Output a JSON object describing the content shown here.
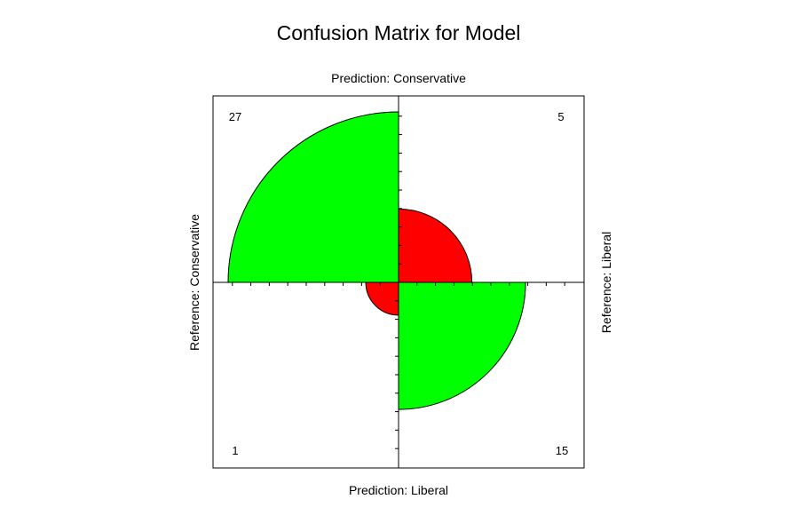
{
  "chart_data": {
    "type": "fourfold",
    "title": "Confusion Matrix for Model",
    "top_label": "Prediction: Conservative",
    "bottom_label": "Prediction: Liberal",
    "left_label": "Reference: Conservative",
    "right_label": "Reference: Liberal",
    "cells": [
      {
        "quadrant": "top-left",
        "value": 27,
        "label": "27",
        "color": "#00ff00"
      },
      {
        "quadrant": "top-right",
        "value": 5,
        "label": "5",
        "color": "#ff0000"
      },
      {
        "quadrant": "bottom-left",
        "value": 1,
        "label": "1",
        "color": "#ff0000"
      },
      {
        "quadrant": "bottom-right",
        "value": 15,
        "label": "15",
        "color": "#00ff00"
      }
    ]
  }
}
